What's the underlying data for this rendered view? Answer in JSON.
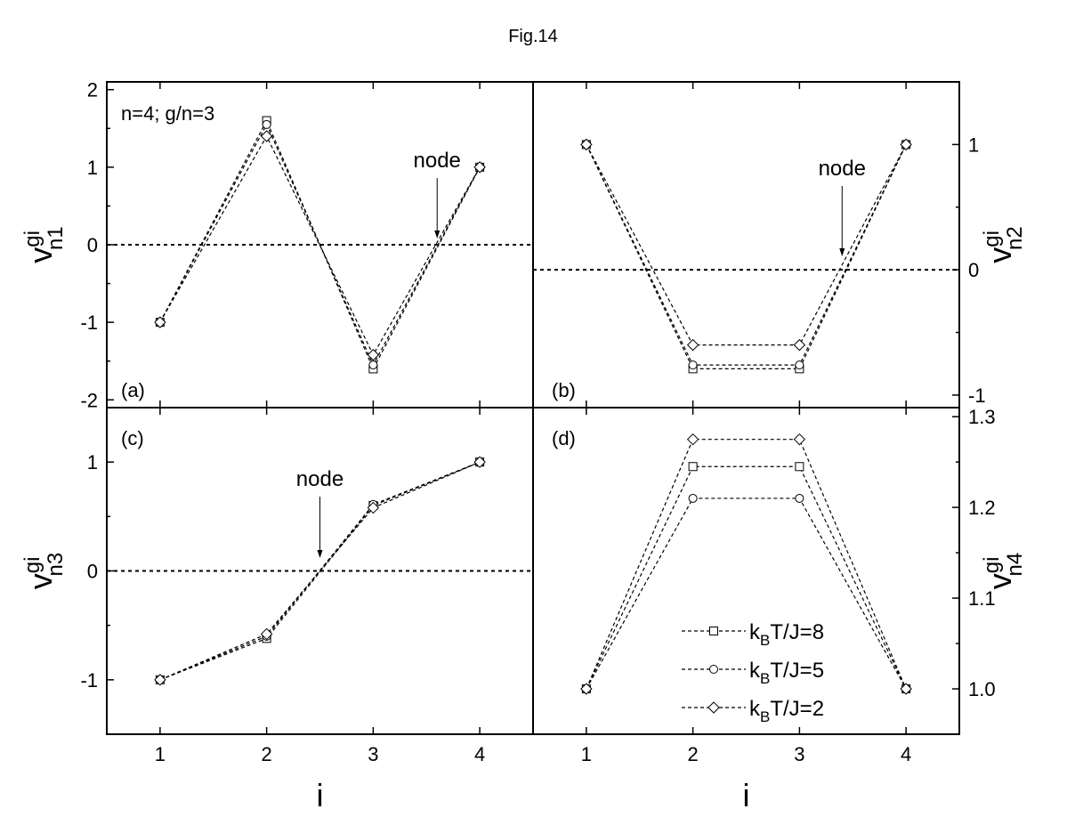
{
  "figure_title": "Fig.14",
  "xaxis": {
    "label": "i"
  },
  "legend": {
    "placement": "lower-right of panel (d)",
    "items": [
      {
        "prefix": "k",
        "sub": "B",
        "suffix": "T/J=8",
        "marker": "square"
      },
      {
        "prefix": "k",
        "sub": "B",
        "suffix": "T/J=5",
        "marker": "circle"
      },
      {
        "prefix": "k",
        "sub": "B",
        "suffix": "T/J=2",
        "marker": "diamond"
      }
    ]
  },
  "chart_data": [
    {
      "type": "line",
      "panel": "(a)",
      "annotation": "n=4; g/n=3",
      "node_label": "node",
      "node_x": 3.6,
      "ylabel": {
        "base": "v",
        "sup": "gi",
        "sub": "n1"
      },
      "yaxis_side": "left",
      "xlim": [
        0.5,
        4.5
      ],
      "ylim": [
        -2.1,
        2.1
      ],
      "yticks": [
        -2,
        -1,
        0,
        1,
        2
      ],
      "ytick_labels": [
        "-2",
        "-1",
        "0",
        "1",
        "2"
      ],
      "x": [
        1,
        2,
        3,
        4
      ],
      "series": [
        {
          "name": "k_B T/J=8",
          "marker": "square",
          "values": [
            -1,
            1.6,
            -1.6,
            1
          ]
        },
        {
          "name": "k_B T/J=5",
          "marker": "circle",
          "values": [
            -1,
            1.55,
            -1.55,
            1
          ]
        },
        {
          "name": "k_B T/J=2",
          "marker": "diamond",
          "values": [
            -1,
            1.4,
            -1.42,
            1
          ]
        }
      ],
      "zero_line": 0
    },
    {
      "type": "line",
      "panel": "(b)",
      "node_label": "node",
      "node_x": 3.4,
      "ylabel": {
        "base": "v",
        "sup": "gi",
        "sub": "n2"
      },
      "yaxis_side": "right",
      "xlim": [
        0.5,
        4.5
      ],
      "ylim": [
        -1.1,
        1.5
      ],
      "yticks": [
        -1,
        0,
        1
      ],
      "ytick_labels": [
        "-1",
        "0",
        "1"
      ],
      "x": [
        1,
        2,
        3,
        4
      ],
      "series": [
        {
          "name": "k_B T/J=8",
          "marker": "square",
          "values": [
            1,
            -0.79,
            -0.79,
            1
          ]
        },
        {
          "name": "k_B T/J=5",
          "marker": "circle",
          "values": [
            1,
            -0.76,
            -0.76,
            1
          ]
        },
        {
          "name": "k_B T/J=2",
          "marker": "diamond",
          "values": [
            1,
            -0.6,
            -0.6,
            1
          ]
        }
      ],
      "zero_line": 0
    },
    {
      "type": "line",
      "panel": "(c)",
      "node_label": "node",
      "node_x": 2.5,
      "ylabel": {
        "base": "v",
        "sup": "gi",
        "sub": "n3"
      },
      "yaxis_side": "left",
      "xlim": [
        0.5,
        4.5
      ],
      "ylim": [
        -1.5,
        1.5
      ],
      "yticks": [
        -1,
        0,
        1
      ],
      "ytick_labels": [
        "-1",
        "0",
        "1"
      ],
      "x": [
        1,
        2,
        3,
        4
      ],
      "series": [
        {
          "name": "k_B T/J=8",
          "marker": "square",
          "values": [
            -1,
            -0.62,
            0.6,
            1
          ]
        },
        {
          "name": "k_B T/J=5",
          "marker": "circle",
          "values": [
            -1,
            -0.6,
            0.61,
            1
          ]
        },
        {
          "name": "k_B T/J=2",
          "marker": "diamond",
          "values": [
            -1,
            -0.58,
            0.58,
            1
          ]
        }
      ],
      "zero_line": 0
    },
    {
      "type": "line",
      "panel": "(d)",
      "ylabel": {
        "base": "v",
        "sup": "gi",
        "sub": "n4"
      },
      "yaxis_side": "right",
      "xlim": [
        0.5,
        4.5
      ],
      "ylim": [
        0.95,
        1.31
      ],
      "yticks": [
        1.0,
        1.1,
        1.2,
        1.3
      ],
      "ytick_labels": [
        "1.0",
        "1.1",
        "1.2",
        "1.3"
      ],
      "x": [
        1,
        2,
        3,
        4
      ],
      "xticks": [
        1,
        2,
        3,
        4
      ],
      "xtick_labels": [
        "1",
        "2",
        "3",
        "4"
      ],
      "series": [
        {
          "name": "k_B T/J=8",
          "marker": "square",
          "values": [
            1,
            1.245,
            1.245,
            1
          ]
        },
        {
          "name": "k_B T/J=5",
          "marker": "circle",
          "values": [
            1,
            1.21,
            1.21,
            1
          ]
        },
        {
          "name": "k_B T/J=2",
          "marker": "diamond",
          "values": [
            1,
            1.275,
            1.275,
            1
          ]
        }
      ]
    }
  ]
}
